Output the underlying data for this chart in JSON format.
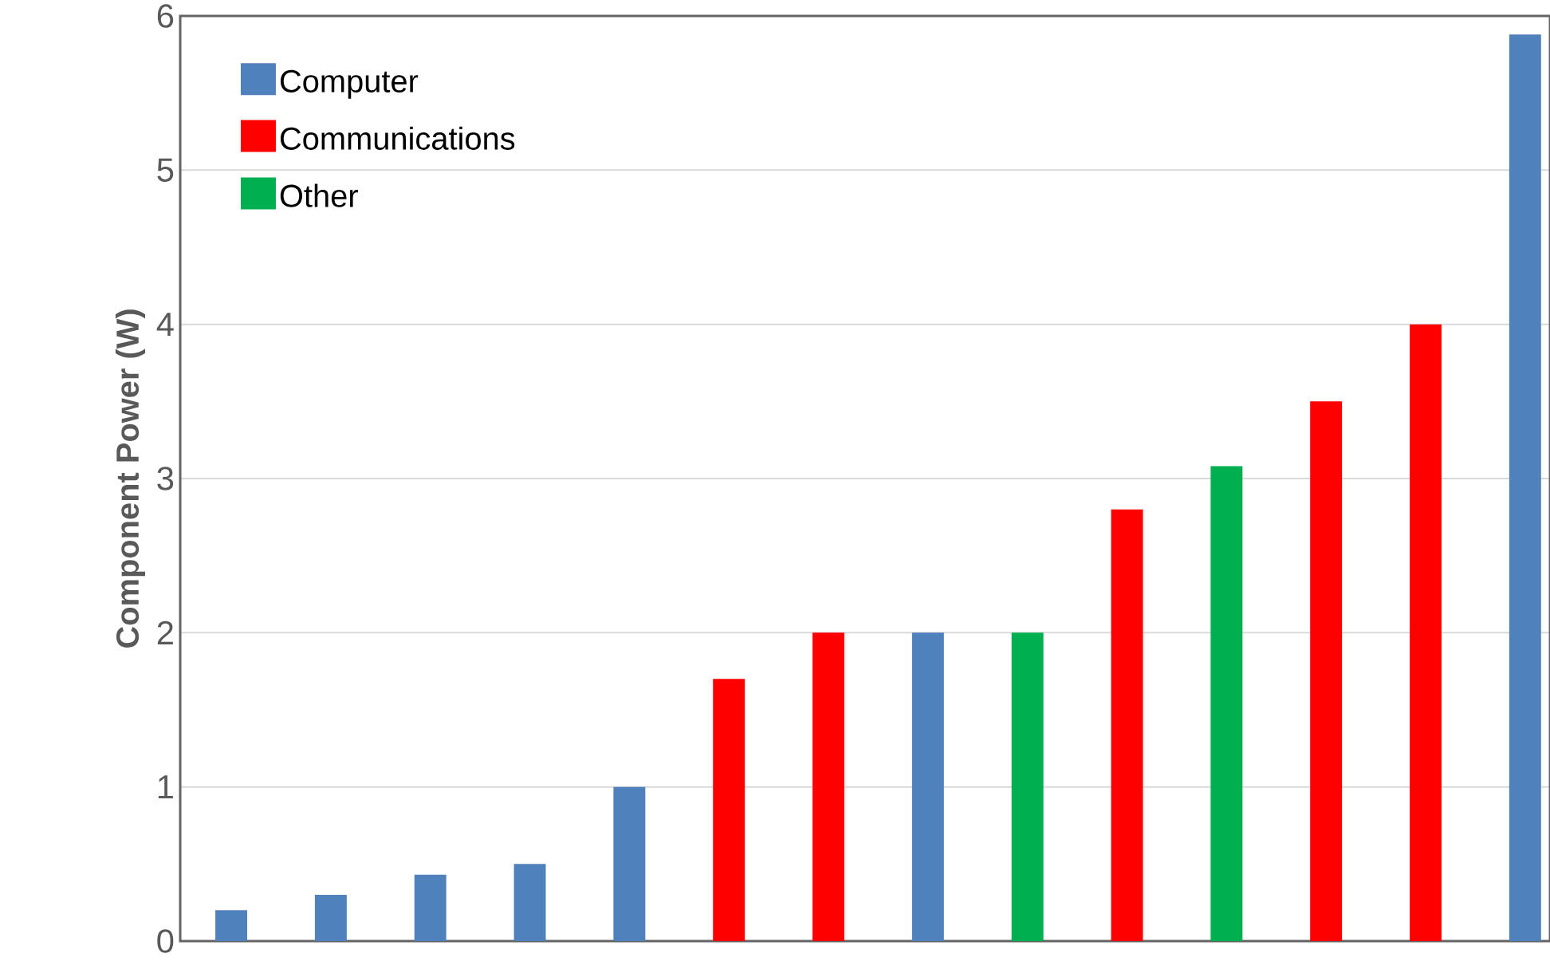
{
  "chart_data": {
    "type": "bar",
    "ylabel": "Component Power (W)",
    "categories": [
      null,
      null,
      null,
      null,
      null,
      null,
      null,
      null,
      null,
      null,
      null,
      null,
      null,
      null
    ],
    "series": [
      {
        "name": "Computer",
        "color": "#4f81bd",
        "values": [
          0.2,
          0.3,
          0.43,
          0.5,
          1.0,
          null,
          null,
          2.0,
          null,
          null,
          null,
          null,
          null,
          5.88
        ]
      },
      {
        "name": "Communications",
        "color": "#ff0000",
        "values": [
          null,
          null,
          null,
          null,
          null,
          1.7,
          2.0,
          null,
          null,
          2.8,
          null,
          3.5,
          4.0,
          null
        ]
      },
      {
        "name": "Other",
        "color": "#00b050",
        "values": [
          null,
          null,
          null,
          null,
          null,
          null,
          null,
          null,
          2.0,
          null,
          3.08,
          null,
          null,
          null
        ]
      }
    ],
    "ylim": [
      0,
      6
    ],
    "yticks": [
      0,
      1,
      2,
      3,
      4,
      5,
      6
    ],
    "grid": "y",
    "legend": "top left"
  }
}
